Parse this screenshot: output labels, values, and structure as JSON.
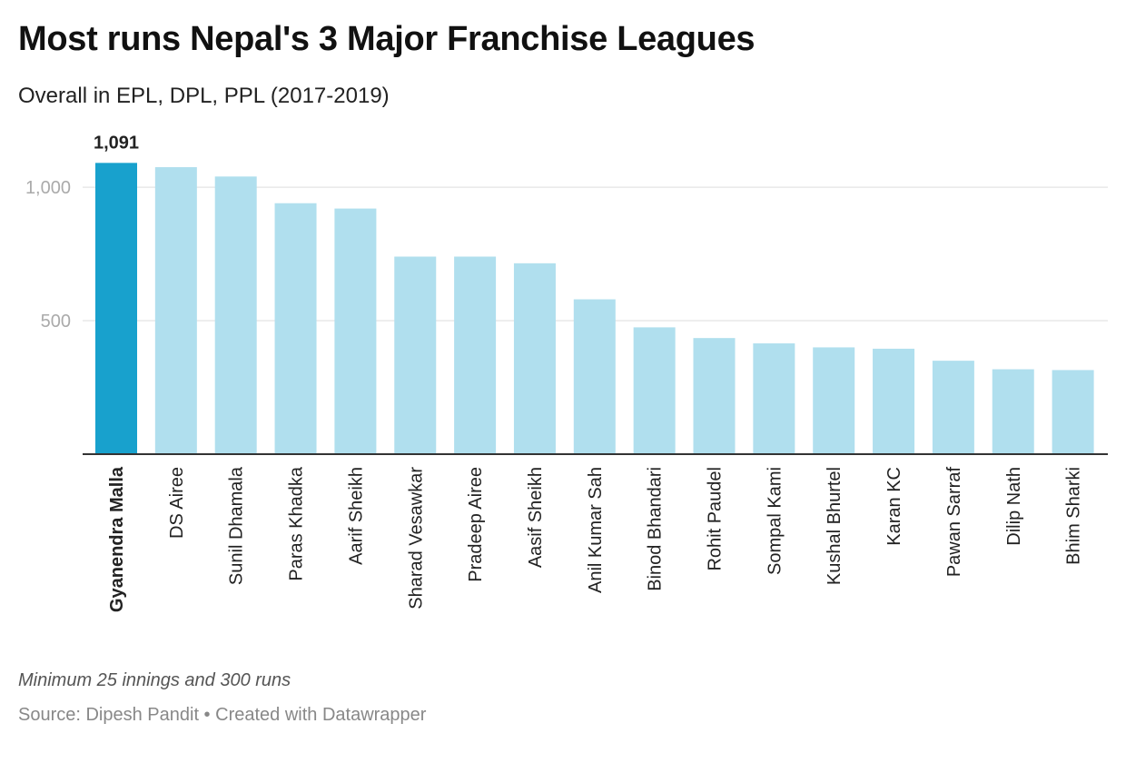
{
  "header": {
    "title": "Most runs Nepal's 3 Major Franchise Leagues",
    "subtitle": "Overall in EPL, DPL, PPL (2017-2019)"
  },
  "footer": {
    "notes": "Minimum 25 innings and 300 runs",
    "source": "Source: Dipesh Pandit • Created with Datawrapper"
  },
  "colors": {
    "highlight": "#18a1cd",
    "bar": "#b0dfee",
    "grid": "#dddddd",
    "tick_label": "#aaaaaa",
    "baseline": "#333333"
  },
  "chart_data": {
    "type": "bar",
    "categories": [
      "Gyanendra Malla",
      "DS Airee",
      "Sunil Dhamala",
      "Paras Khadka",
      "Aarif Sheikh",
      "Sharad Vesawkar",
      "Pradeep Airee",
      "Aasif Sheikh",
      "Anil Kumar Sah",
      "Binod Bhandari",
      "Rohit Paudel",
      "Sompal Kami",
      "Kushal Bhurtel",
      "Karan KC",
      "Pawan Sarraf",
      "Dilip Nath",
      "Bhim Sharki"
    ],
    "values": [
      1091,
      1075,
      1040,
      940,
      920,
      740,
      740,
      715,
      580,
      475,
      435,
      415,
      400,
      395,
      350,
      318,
      315
    ],
    "highlighted_index": 0,
    "data_labels": [
      {
        "index": 0,
        "text": "1,091"
      }
    ],
    "ylim": [
      0,
      1150
    ],
    "yticks": [
      {
        "value": 500,
        "label": "500"
      },
      {
        "value": 1000,
        "label": "1,000"
      }
    ],
    "grid": true,
    "xlabel": "",
    "ylabel": ""
  }
}
